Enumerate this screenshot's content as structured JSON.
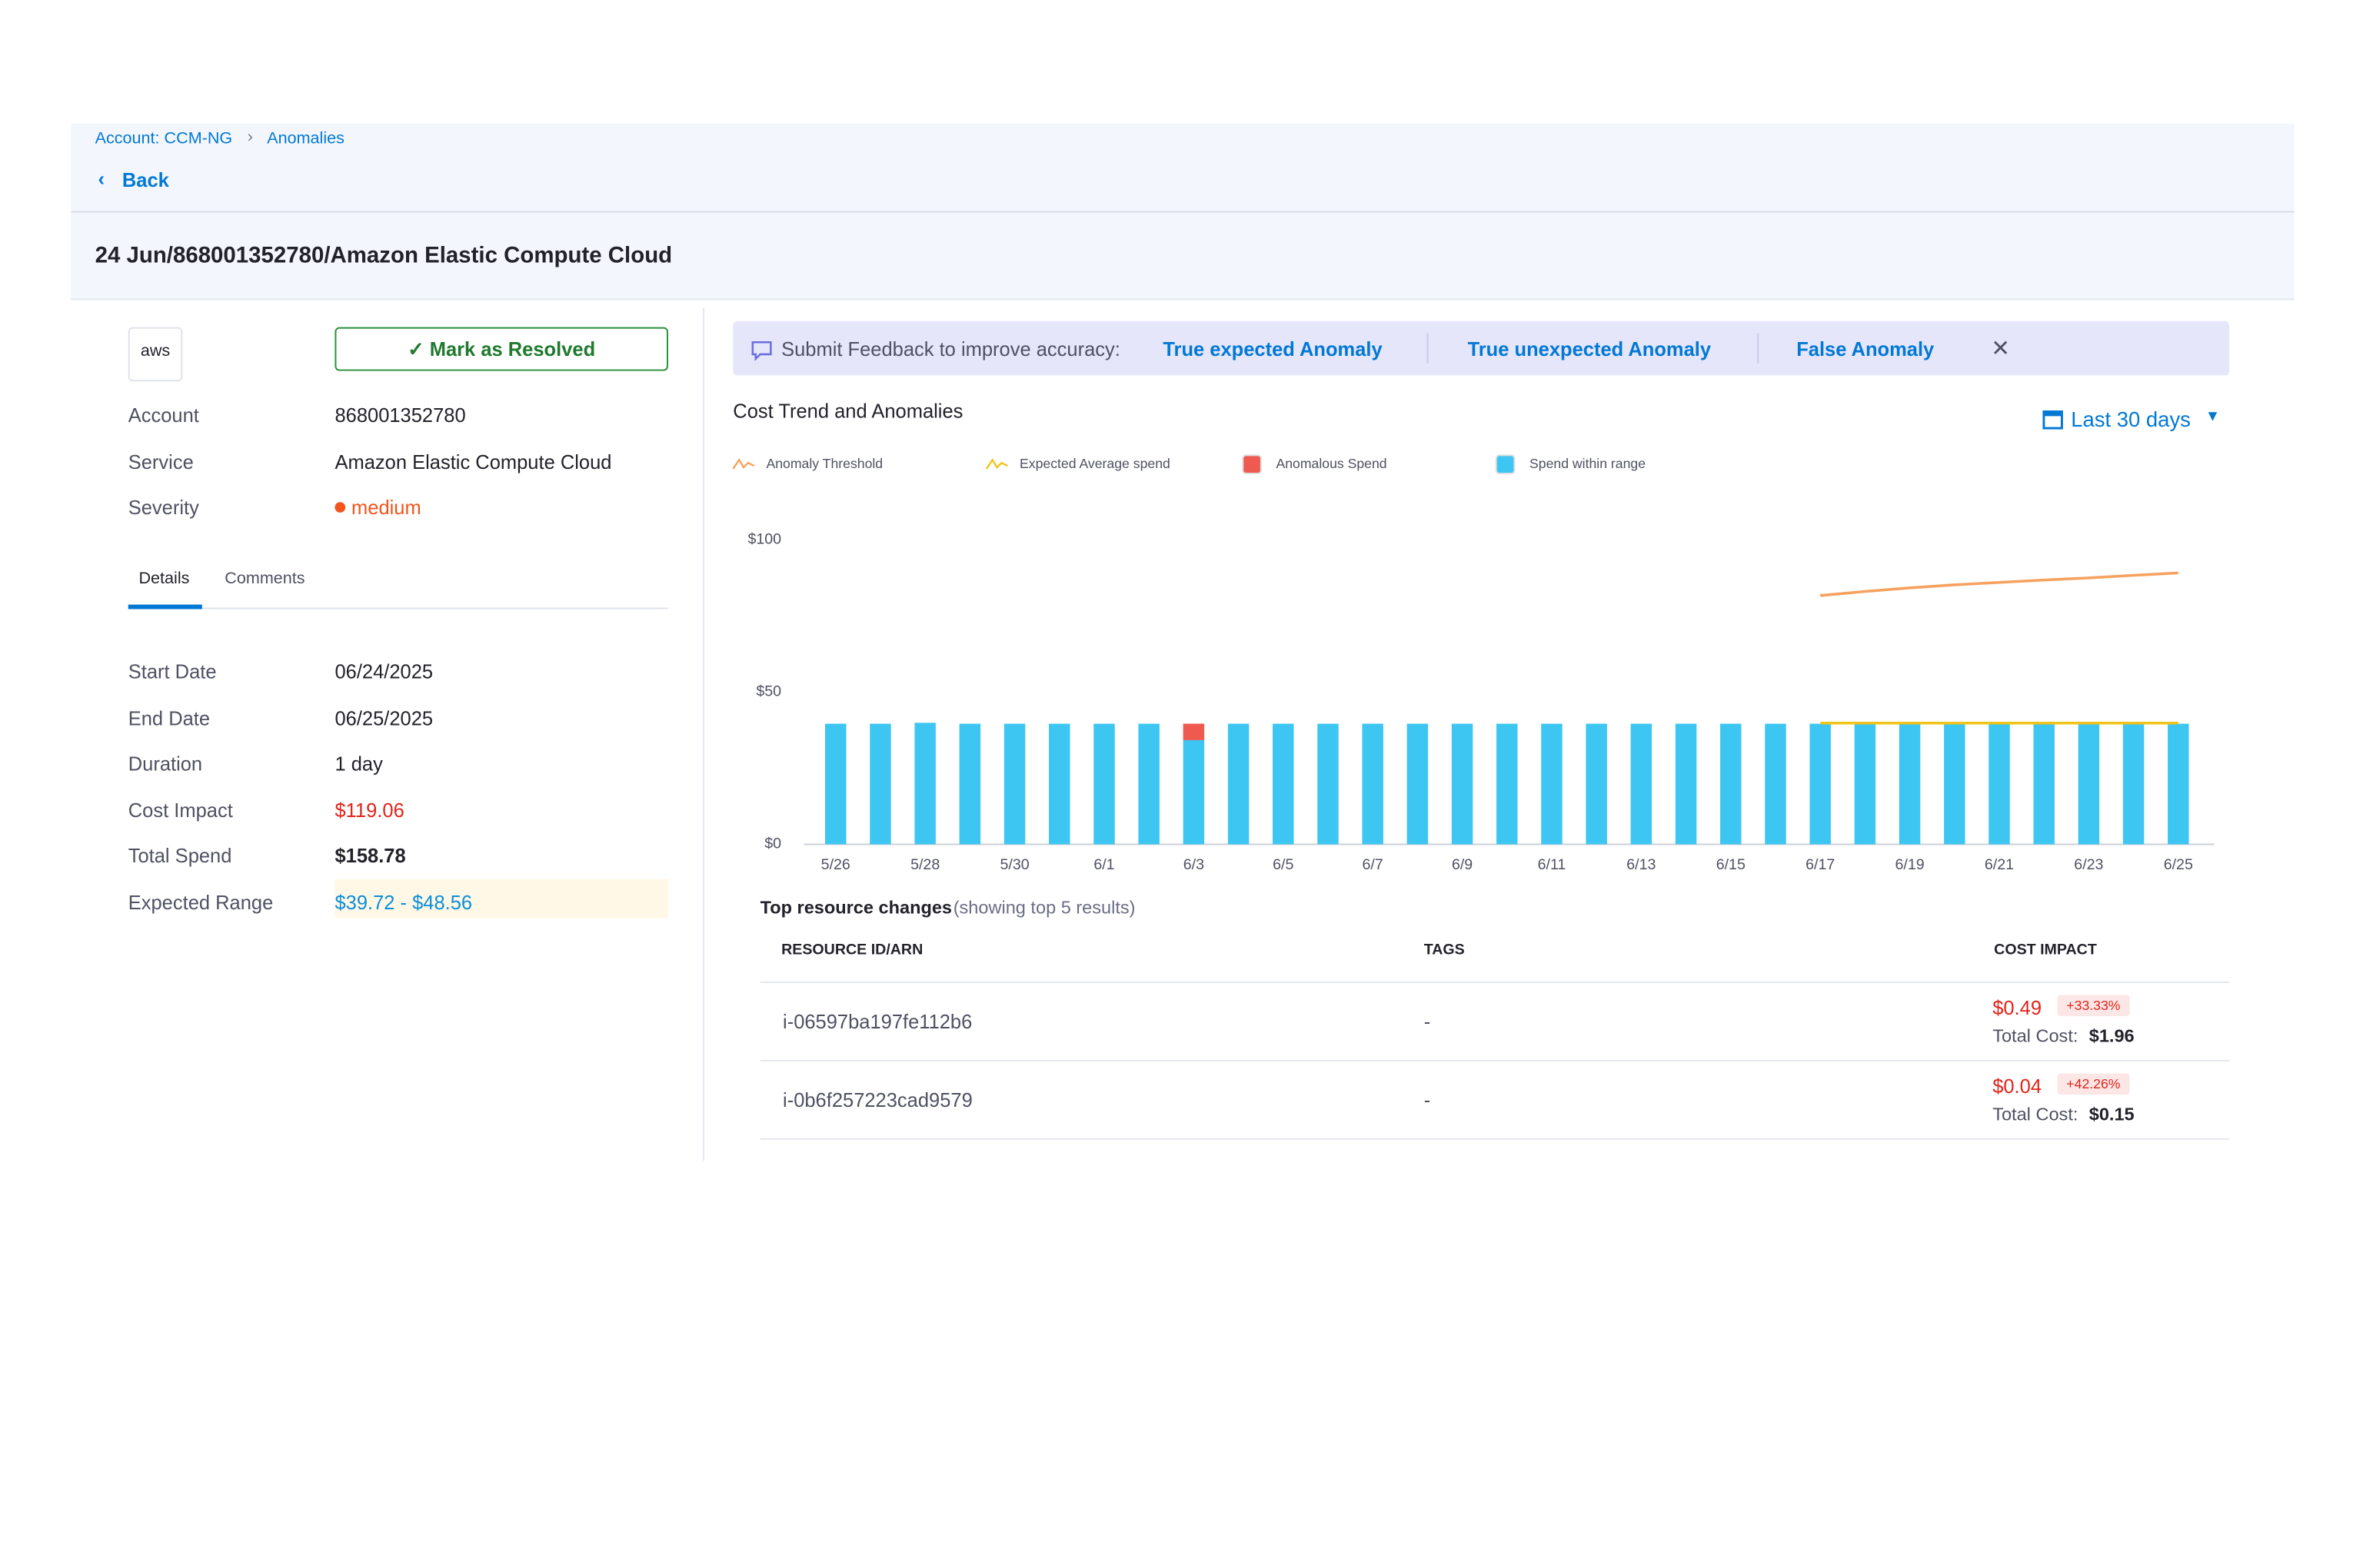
{
  "breadcrumb": {
    "items": [
      "Account: CCM-NG",
      "Anomalies"
    ],
    "back": "Back"
  },
  "header": {
    "title": "24 Jun/868001352780/Amazon Elastic Compute Cloud"
  },
  "details": {
    "logo": "aws",
    "resolve_button": "Mark as Resolved",
    "summary": [
      [
        "Account",
        "868001352780"
      ],
      [
        "Service",
        "Amazon Elastic Compute Cloud"
      ],
      [
        "Severity",
        "medium"
      ]
    ],
    "tabs": [
      "Details",
      "Comments"
    ],
    "fields": [
      [
        "Start Date",
        "06/24/2025"
      ],
      [
        "End Date",
        "06/25/2025"
      ],
      [
        "Duration",
        "1 day"
      ],
      [
        "Cost Impact",
        "$119.06"
      ],
      [
        "Total Spend",
        "$158.78"
      ],
      [
        "Expected Range",
        "$39.72 - $48.56"
      ]
    ]
  },
  "feedback": {
    "prompt": "Submit Feedback to improve accuracy:",
    "options": [
      "True expected Anomaly",
      "True unexpected Anomaly",
      "False Anomaly"
    ]
  },
  "chart_data": {
    "type": "bar",
    "title": "Cost Trend and Anomalies",
    "range_selector": "Last 30 days",
    "categories": [
      "5/26",
      null,
      "5/28",
      null,
      "5/30",
      null,
      "6/1",
      null,
      "6/3",
      null,
      "6/5",
      null,
      "6/7",
      null,
      "6/9",
      null,
      "6/11",
      null,
      "6/13",
      null,
      "6/15",
      null,
      "6/17",
      null,
      "6/19",
      null,
      "6/21",
      null,
      "6/23",
      null,
      "6/25"
    ],
    "ylim": [
      0,
      100
    ],
    "yticks": [
      {
        "value": 0,
        "label": "$0"
      },
      {
        "value": 50,
        "label": "$50"
      },
      {
        "value": 100,
        "label": "$100"
      }
    ],
    "series": [
      {
        "name": "Anomaly Threshold",
        "type": "line",
        "color": "#f6a15e",
        "values": [
          null,
          null,
          null,
          null,
          null,
          null,
          null,
          null,
          null,
          null,
          null,
          null,
          null,
          null,
          null,
          null,
          null,
          null,
          null,
          null,
          null,
          null,
          81.7,
          83.0,
          84.2,
          85.2,
          86.0,
          86.8,
          87.5,
          88.3,
          89.1
        ]
      },
      {
        "name": "Expected Average spend",
        "type": "line",
        "color": "#f2c318",
        "values": [
          null,
          null,
          null,
          null,
          null,
          null,
          null,
          null,
          null,
          null,
          null,
          null,
          null,
          null,
          null,
          null,
          null,
          null,
          null,
          null,
          null,
          null,
          39.8,
          39.8,
          39.8,
          39.8,
          39.8,
          39.8,
          39.8,
          39.8,
          39.8
        ]
      },
      {
        "name": "Anomalous Spend",
        "type": "bar",
        "color": "#ef5a50",
        "values": [
          null,
          null,
          null,
          null,
          null,
          null,
          null,
          null,
          5.4,
          null,
          null,
          null,
          null,
          null,
          null,
          null,
          null,
          null,
          null,
          null,
          null,
          null,
          null,
          null,
          null,
          null,
          null,
          null,
          null,
          null,
          null
        ]
      },
      {
        "name": "Spend within range",
        "type": "bar",
        "color": "#3ec6f3",
        "values": [
          39.6,
          39.6,
          39.9,
          39.6,
          39.6,
          39.6,
          39.6,
          39.6,
          34.2,
          39.6,
          39.6,
          39.6,
          39.6,
          39.6,
          39.6,
          39.6,
          39.6,
          39.6,
          39.6,
          39.6,
          39.6,
          39.6,
          39.6,
          39.6,
          39.6,
          39.6,
          39.6,
          39.6,
          39.6,
          39.6,
          39.6
        ]
      }
    ]
  },
  "table": {
    "title": "Top resource changes",
    "subtitle": "(showing top 5 results)",
    "columns": [
      "RESOURCE ID/ARN",
      "TAGS",
      "COST IMPACT"
    ],
    "rows": [
      {
        "id": "i-06597ba197fe112b6",
        "tags": "-",
        "cost": "$0.49",
        "change": "+33.33%",
        "total_label": "Total Cost:",
        "total": "$1.96"
      },
      {
        "id": "i-0b6f257223cad9579",
        "tags": "-",
        "cost": "$0.04",
        "change": "+42.26%",
        "total_label": "Total Cost:",
        "total": "$0.15"
      }
    ]
  }
}
